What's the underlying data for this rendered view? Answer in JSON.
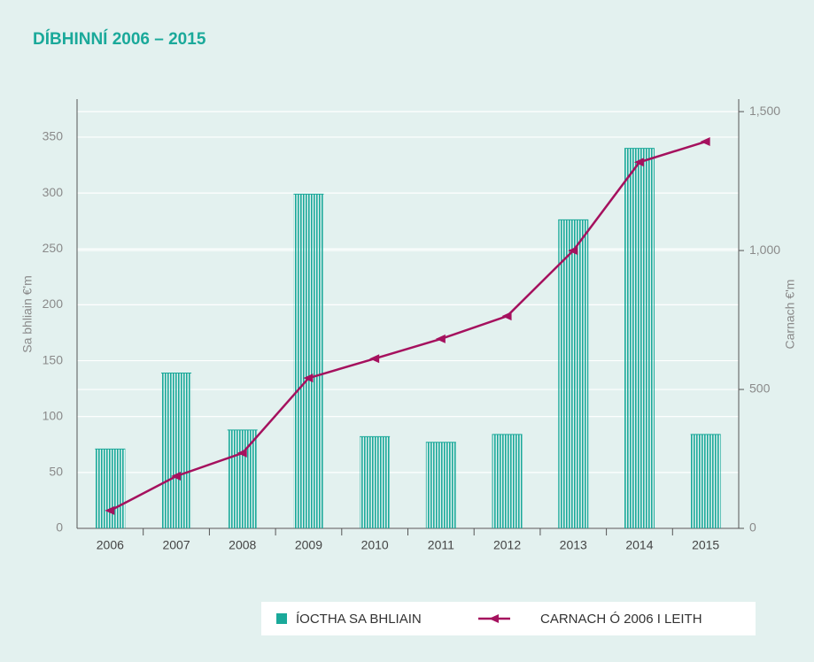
{
  "chart_data": {
    "type": "combo",
    "title": "DÍBHINNÍ 2006 – 2015",
    "ylabel": "Sa bhliain €'m",
    "y2label": "Carnach €'m",
    "categories": [
      "2006",
      "2007",
      "2008",
      "2009",
      "2010",
      "2011",
      "2012",
      "2013",
      "2014",
      "2015"
    ],
    "series": [
      {
        "name": "ÍOCTHA SA BHLIAIN",
        "type": "bar",
        "axis": "y",
        "color": "#1aa99a",
        "values": [
          71,
          139,
          88,
          299,
          82,
          77,
          84,
          276,
          340,
          84
        ]
      },
      {
        "name": "CARNACH Ó 2006 I LEITH",
        "type": "line",
        "axis": "y2",
        "color": "#a5115e",
        "values": [
          64,
          188,
          271,
          541,
          611,
          682,
          764,
          1000,
          1318,
          1392
        ]
      }
    ],
    "ylim": [
      0,
      384
    ],
    "yticks": [
      0,
      50,
      100,
      150,
      200,
      250,
      300,
      350
    ],
    "y2lim": [
      0,
      1545
    ],
    "y2ticks": [
      0,
      500,
      {
        "value": 1000,
        "label": "1,000"
      },
      {
        "value": 1500,
        "label": "1,500"
      }
    ],
    "grid": true
  }
}
